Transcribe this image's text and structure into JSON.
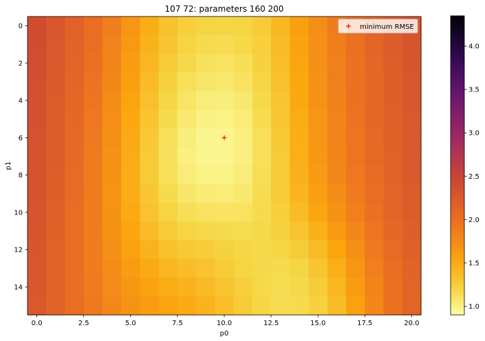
{
  "chart_data": {
    "type": "heatmap",
    "title": "107 72: parameters 160 200",
    "xlabel": "p0",
    "ylabel": "p1",
    "x_values": [
      0,
      1,
      2,
      3,
      4,
      5,
      6,
      7,
      8,
      9,
      10,
      11,
      12,
      13,
      14,
      15,
      16,
      17,
      18,
      19,
      20
    ],
    "y_values": [
      0,
      1,
      2,
      3,
      4,
      5,
      6,
      7,
      8,
      9,
      10,
      11,
      12,
      13,
      14,
      15
    ],
    "xlim": [
      -0.5,
      20.5
    ],
    "ylim": [
      15.5,
      -0.5
    ],
    "x_ticks": [
      0,
      2.5,
      5,
      7.5,
      10,
      12.5,
      15,
      17.5,
      20
    ],
    "x_tick_labels": [
      "0.0",
      "2.5",
      "5.0",
      "7.5",
      "10.0",
      "12.5",
      "15.0",
      "17.5",
      "20.0"
    ],
    "y_ticks": [
      0,
      2,
      4,
      6,
      8,
      10,
      12,
      14
    ],
    "y_tick_labels": [
      "0",
      "2",
      "4",
      "6",
      "8",
      "10",
      "12",
      "14"
    ],
    "colormap": "inferno_r",
    "color_range": [
      0.9,
      4.35
    ],
    "colorbar_ticks": [
      1.0,
      1.5,
      2.0,
      2.5,
      3.0,
      3.5,
      4.0
    ],
    "colorbar_tick_labels": [
      "1.0",
      "1.5",
      "2.0",
      "2.5",
      "3.0",
      "3.5",
      "4.0"
    ],
    "z_values": [
      [
        2.4,
        2.28,
        2.15,
        2.02,
        1.85,
        1.66,
        1.47,
        1.33,
        1.24,
        1.19,
        1.18,
        1.2,
        1.27,
        1.4,
        1.57,
        1.72,
        1.86,
        1.99,
        2.1,
        2.2,
        2.3
      ],
      [
        2.39,
        2.27,
        2.14,
        2.0,
        1.82,
        1.63,
        1.44,
        1.3,
        1.2,
        1.15,
        1.14,
        1.17,
        1.24,
        1.37,
        1.55,
        1.71,
        1.85,
        1.98,
        2.1,
        2.2,
        2.3
      ],
      [
        2.38,
        2.26,
        2.12,
        1.98,
        1.8,
        1.6,
        1.41,
        1.26,
        1.16,
        1.11,
        1.1,
        1.13,
        1.21,
        1.35,
        1.53,
        1.7,
        1.84,
        1.97,
        2.09,
        2.19,
        2.29
      ],
      [
        2.37,
        2.24,
        2.1,
        1.95,
        1.77,
        1.57,
        1.37,
        1.22,
        1.12,
        1.07,
        1.06,
        1.1,
        1.18,
        1.33,
        1.51,
        1.69,
        1.84,
        1.97,
        2.08,
        2.18,
        2.28
      ],
      [
        2.36,
        2.23,
        2.09,
        1.93,
        1.74,
        1.54,
        1.34,
        1.18,
        1.08,
        1.03,
        1.02,
        1.06,
        1.16,
        1.31,
        1.5,
        1.68,
        1.83,
        1.96,
        2.08,
        2.18,
        2.28
      ],
      [
        2.35,
        2.22,
        2.07,
        1.91,
        1.72,
        1.51,
        1.31,
        1.15,
        1.05,
        1.0,
        0.99,
        1.03,
        1.14,
        1.29,
        1.48,
        1.66,
        1.82,
        1.95,
        2.07,
        2.17,
        2.27
      ],
      [
        2.34,
        2.21,
        2.06,
        1.89,
        1.7,
        1.49,
        1.28,
        1.12,
        1.02,
        0.97,
        0.96,
        1.01,
        1.12,
        1.28,
        1.47,
        1.65,
        1.81,
        1.94,
        2.06,
        2.16,
        2.26
      ],
      [
        2.33,
        2.2,
        2.05,
        1.88,
        1.69,
        1.48,
        1.27,
        1.11,
        1.01,
        0.97,
        0.97,
        1.01,
        1.12,
        1.27,
        1.46,
        1.64,
        1.8,
        1.93,
        2.05,
        2.15,
        2.25
      ],
      [
        2.33,
        2.19,
        2.04,
        1.87,
        1.68,
        1.47,
        1.27,
        1.12,
        1.03,
        0.99,
        0.99,
        1.03,
        1.13,
        1.27,
        1.45,
        1.62,
        1.78,
        1.91,
        2.03,
        2.14,
        2.24
      ],
      [
        2.32,
        2.18,
        2.03,
        1.86,
        1.67,
        1.47,
        1.29,
        1.15,
        1.07,
        1.04,
        1.03,
        1.06,
        1.14,
        1.26,
        1.42,
        1.58,
        1.74,
        1.88,
        2.01,
        2.12,
        2.22
      ],
      [
        2.31,
        2.17,
        2.02,
        1.86,
        1.68,
        1.49,
        1.32,
        1.2,
        1.13,
        1.1,
        1.09,
        1.1,
        1.15,
        1.24,
        1.37,
        1.52,
        1.68,
        1.84,
        1.98,
        2.1,
        2.2
      ],
      [
        2.3,
        2.16,
        2.01,
        1.86,
        1.69,
        1.52,
        1.37,
        1.26,
        1.2,
        1.17,
        1.15,
        1.14,
        1.16,
        1.21,
        1.31,
        1.45,
        1.61,
        1.78,
        1.94,
        2.07,
        2.18
      ],
      [
        2.29,
        2.15,
        2.01,
        1.86,
        1.71,
        1.56,
        1.43,
        1.34,
        1.28,
        1.25,
        1.21,
        1.18,
        1.16,
        1.18,
        1.25,
        1.37,
        1.53,
        1.71,
        1.89,
        2.04,
        2.16
      ],
      [
        2.28,
        2.15,
        2.01,
        1.87,
        1.73,
        1.6,
        1.49,
        1.41,
        1.36,
        1.32,
        1.26,
        1.2,
        1.16,
        1.15,
        1.19,
        1.3,
        1.46,
        1.65,
        1.84,
        2.0,
        2.14
      ],
      [
        2.28,
        2.15,
        2.01,
        1.88,
        1.75,
        1.64,
        1.55,
        1.48,
        1.43,
        1.38,
        1.31,
        1.23,
        1.17,
        1.14,
        1.16,
        1.25,
        1.41,
        1.6,
        1.8,
        1.98,
        2.12
      ],
      [
        2.27,
        2.14,
        2.01,
        1.89,
        1.77,
        1.68,
        1.6,
        1.54,
        1.49,
        1.43,
        1.35,
        1.26,
        1.18,
        1.14,
        1.15,
        1.22,
        1.37,
        1.56,
        1.77,
        1.96,
        2.11
      ]
    ],
    "marker": {
      "x": 10,
      "y": 6,
      "symbol": "+",
      "color": "#ff0000"
    },
    "legend": {
      "placement": "top-right",
      "label": "minimum RMSE"
    }
  }
}
